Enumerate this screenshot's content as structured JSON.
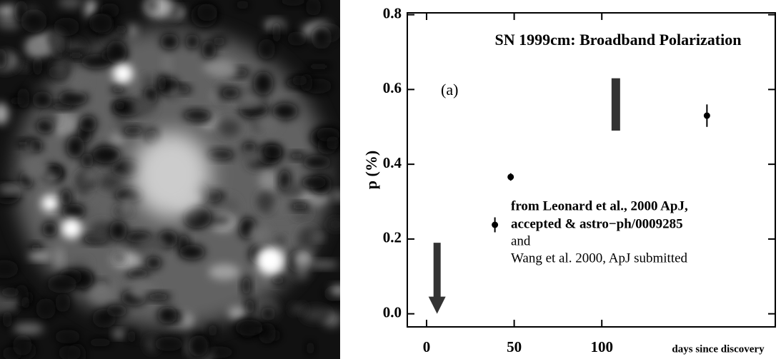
{
  "chart_data": {
    "type": "scatter",
    "title": "SN 1999cm: Broadband Polarization",
    "panel_label": "(a)",
    "y_label": "p (%)",
    "x_label": "days since discovery",
    "annotations": [
      "from Leonard et al., 2000 ApJ,",
      "accepted & astro−ph/0009285",
      "and",
      "Wang et al. 2000, ApJ submitted"
    ],
    "series": [
      {
        "x": [
          39,
          48,
          160
        ],
        "values": [
          0.238,
          0.366,
          0.53
        ],
        "errors": [
          0.02,
          0.01,
          0.03
        ],
        "color": "#000000"
      }
    ],
    "range": {
      "x": 108,
      "low": 0.49,
      "high": 0.63,
      "color": "#333333"
    },
    "upper_limit": {
      "x": 6,
      "value": 0.19,
      "color": "#333333"
    },
    "xlim": [
      -11,
      199
    ],
    "ylim": [
      -0.035,
      0.805
    ],
    "xticks": [
      0,
      50,
      100
    ],
    "yticks": [
      {
        "value": 0,
        "label": "0.0"
      },
      0.2,
      0.4,
      0.6,
      0.8
    ]
  }
}
